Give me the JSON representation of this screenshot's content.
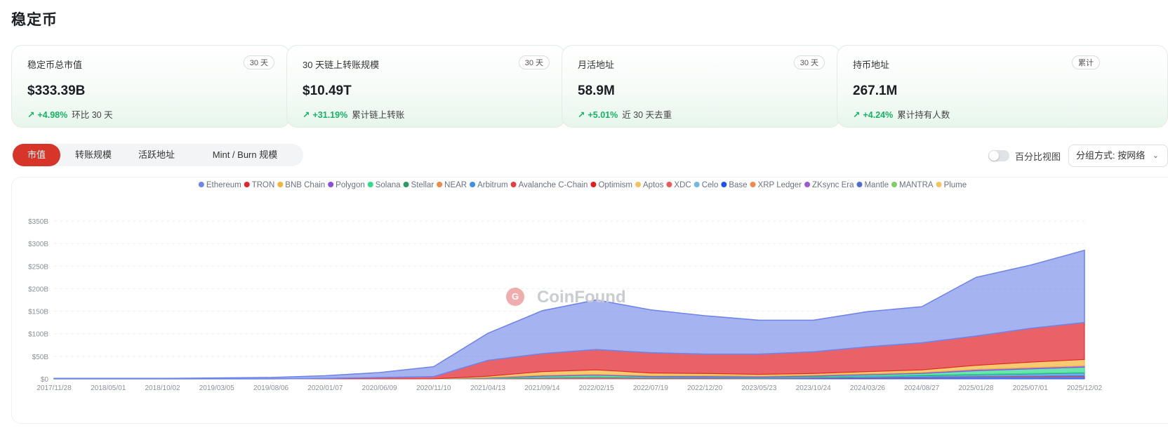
{
  "page": {
    "title": "稳定币"
  },
  "cards": [
    {
      "label": "稳定币总市值",
      "badge": "30 天",
      "value": "$333.39B",
      "change": "+4.98%",
      "sub": "环比 30 天"
    },
    {
      "label": "30 天链上转账规模",
      "badge": "30 天",
      "value": "$10.49T",
      "change": "+31.19%",
      "sub": "累计链上转账"
    },
    {
      "label": "月活地址",
      "badge": "30 天",
      "value": "58.9M",
      "change": "+5.01%",
      "sub": "近 30 天去重"
    },
    {
      "label": "持币地址",
      "badge": "累计",
      "value": "267.1M",
      "change": "+4.24%",
      "sub": "累计持有人数"
    }
  ],
  "tabs": [
    {
      "label": "市值",
      "active": true
    },
    {
      "label": "转账规模",
      "active": false
    },
    {
      "label": "活跃地址",
      "active": false
    },
    {
      "label": "Mint / Burn 规模",
      "active": false
    }
  ],
  "controls": {
    "percent_view_label": "百分比视图",
    "group_by_label": "分组方式: 按网络"
  },
  "watermark": "CoinFound",
  "colors": {
    "accent": "#d7342a",
    "positive": "#16b364"
  },
  "chart_data": {
    "type": "area",
    "stacked": true,
    "x": [
      "2017/11/28",
      "2018/05/01",
      "2018/10/02",
      "2019/03/05",
      "2019/08/06",
      "2020/01/07",
      "2020/06/09",
      "2020/11/10",
      "2021/04/13",
      "2021/09/14",
      "2022/02/15",
      "2022/07/19",
      "2022/12/20",
      "2023/05/23",
      "2023/10/24",
      "2024/03/26",
      "2024/08/27",
      "2025/01/28",
      "2025/07/01",
      "2025/12/02"
    ],
    "y_ticks": [
      "$0",
      "$50B",
      "$100B",
      "$150B",
      "$200B",
      "$250B",
      "$300B",
      "$350B"
    ],
    "ylim": [
      0,
      350
    ],
    "legend_position": "top",
    "grid": true,
    "legend": [
      {
        "name": "Ethereum",
        "color": "#6f85e8"
      },
      {
        "name": "TRON",
        "color": "#e0262d"
      },
      {
        "name": "BNB Chain",
        "color": "#f1b53a"
      },
      {
        "name": "Polygon",
        "color": "#8a4fe0"
      },
      {
        "name": "Solana",
        "color": "#2fdc8c"
      },
      {
        "name": "Stellar",
        "color": "#2e9a63"
      },
      {
        "name": "NEAR",
        "color": "#f0884a"
      },
      {
        "name": "Arbitrum",
        "color": "#3d8fe8"
      },
      {
        "name": "Avalanche C-Chain",
        "color": "#e04040"
      },
      {
        "name": "Optimism",
        "color": "#e51c1c"
      },
      {
        "name": "Aptos",
        "color": "#f2c35a"
      },
      {
        "name": "XDC",
        "color": "#ea5a5a"
      },
      {
        "name": "Celo",
        "color": "#6fb8e0"
      },
      {
        "name": "Base",
        "color": "#1e52f0"
      },
      {
        "name": "XRP Ledger",
        "color": "#f08a4a"
      },
      {
        "name": "ZKsync Era",
        "color": "#9a5ad6"
      },
      {
        "name": "Mantle",
        "color": "#4f6ec8"
      },
      {
        "name": "MANTRA",
        "color": "#7ecb6a"
      },
      {
        "name": "Plume",
        "color": "#f6c35e"
      }
    ],
    "series": [
      {
        "name": "Ethereum",
        "values": [
          1,
          1,
          1,
          2,
          3,
          6,
          11,
          22,
          60,
          95,
          110,
          95,
          85,
          75,
          70,
          78,
          80,
          130,
          140,
          160
        ]
      },
      {
        "name": "TRON",
        "values": [
          0,
          0,
          0,
          0,
          0,
          1,
          3,
          5,
          35,
          40,
          45,
          45,
          43,
          45,
          48,
          55,
          60,
          65,
          75,
          82
        ]
      },
      {
        "name": "BNB Chain",
        "values": [
          0,
          0,
          0,
          0,
          0,
          0,
          0,
          0,
          3,
          8,
          10,
          6,
          5,
          4,
          4,
          5,
          6,
          9,
          12,
          14
        ]
      },
      {
        "name": "Polygon",
        "values": [
          0,
          0,
          0,
          0,
          0,
          0,
          0,
          0,
          1,
          2,
          2,
          2,
          2,
          2,
          2,
          2,
          2,
          3,
          3,
          3
        ]
      },
      {
        "name": "Solana",
        "values": [
          0,
          0,
          0,
          0,
          0,
          0,
          0,
          0,
          1,
          3,
          4,
          2,
          1,
          1,
          2,
          3,
          4,
          8,
          10,
          12
        ]
      },
      {
        "name": "Stellar",
        "values": [
          0,
          0,
          0,
          0,
          0,
          0,
          0,
          0,
          0,
          0,
          0,
          0,
          0,
          0,
          0,
          0,
          1,
          1,
          1,
          1
        ]
      },
      {
        "name": "Arbitrum",
        "values": [
          0,
          0,
          0,
          0,
          0,
          0,
          0,
          0,
          0,
          1,
          1,
          1,
          2,
          2,
          2,
          3,
          3,
          4,
          5,
          6
        ]
      },
      {
        "name": "Avalanche C-Chain",
        "values": [
          0,
          0,
          0,
          0,
          0,
          0,
          0,
          0,
          1,
          2,
          3,
          2,
          2,
          1,
          1,
          1,
          1,
          1,
          2,
          2
        ]
      },
      {
        "name": "Base",
        "values": [
          0,
          0,
          0,
          0,
          0,
          0,
          0,
          0,
          0,
          0,
          0,
          0,
          0,
          0,
          1,
          2,
          3,
          4,
          4,
          5
        ]
      }
    ]
  }
}
